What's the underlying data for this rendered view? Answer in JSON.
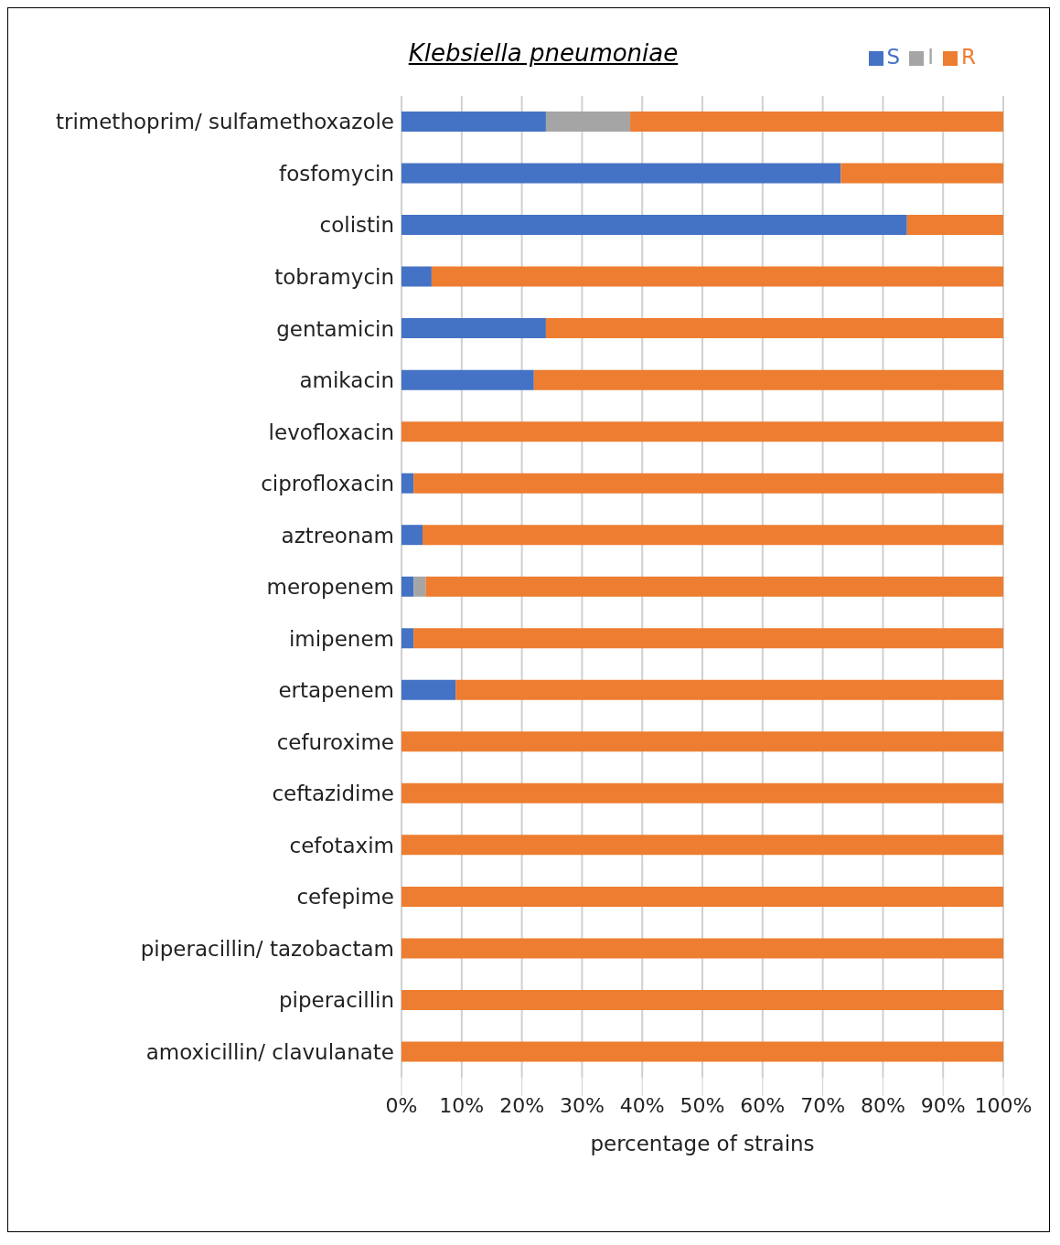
{
  "chart_data": {
    "type": "bar",
    "orientation": "horizontal",
    "stacked": true,
    "title": "Klebsiella pneumoniae",
    "xlabel": "percentage of strains",
    "categories": [
      "trimethoprim/ sulfamethoxazole",
      "fosfomycin",
      "colistin",
      "tobramycin",
      "gentamicin",
      "amikacin",
      "levofloxacin",
      "ciprofloxacin",
      "aztreonam",
      "meropenem",
      "imipenem",
      "ertapenem",
      "cefuroxime",
      "ceftazidime",
      "cefotaxim",
      "cefepime",
      "piperacillin/ tazobactam",
      "piperacillin",
      "amoxicillin/ clavulanate"
    ],
    "series": [
      {
        "name": "S",
        "color": "#4472c4",
        "values": [
          24,
          73,
          84,
          5,
          24,
          22,
          0,
          2,
          3.5,
          2,
          2,
          9,
          0,
          0,
          0,
          0,
          0,
          0,
          0
        ]
      },
      {
        "name": "I",
        "color": "#a5a5a5",
        "values": [
          14,
          0,
          0,
          0,
          0,
          0,
          0,
          0,
          0,
          2,
          0,
          0,
          0,
          0,
          0,
          0,
          0,
          0,
          0
        ]
      },
      {
        "name": "R",
        "color": "#ed7d31",
        "values": [
          62,
          27,
          16,
          95,
          76,
          78,
          100,
          98,
          96.5,
          96,
          98,
          91,
          100,
          100,
          100,
          100,
          100,
          100,
          100
        ]
      }
    ],
    "xlim": [
      0,
      100
    ],
    "xticks": [
      {
        "value": 0,
        "label": "0%"
      },
      {
        "value": 10,
        "label": "10%"
      },
      {
        "value": 20,
        "label": "20%"
      },
      {
        "value": 30,
        "label": "30%"
      },
      {
        "value": 40,
        "label": "40%"
      },
      {
        "value": 50,
        "label": "50%"
      },
      {
        "value": 60,
        "label": "60%"
      },
      {
        "value": 70,
        "label": "70%"
      },
      {
        "value": 80,
        "label": "80%"
      },
      {
        "value": 90,
        "label": "90%"
      },
      {
        "value": 100,
        "label": "100%"
      }
    ],
    "grid": "x",
    "legend": "top right"
  }
}
